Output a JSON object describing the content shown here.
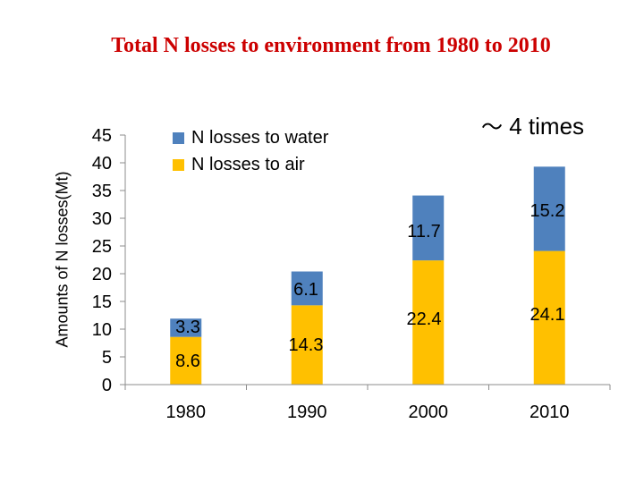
{
  "chart_data": {
    "type": "bar",
    "stacked": true,
    "title": "Total N losses to environment from 1980 to 2010",
    "xlabel": "",
    "ylabel": "Amounts of N losses(Mt)",
    "ylim": [
      0,
      45
    ],
    "yticks": [
      "0",
      "5",
      "10",
      "15",
      "20",
      "25",
      "30",
      "35",
      "40",
      "45"
    ],
    "categories": [
      "1980",
      "1990",
      "2000",
      "2010"
    ],
    "series": [
      {
        "name": "N losses to air",
        "color": "#ffc000",
        "values": [
          8.6,
          14.3,
          22.4,
          24.1
        ],
        "labels": [
          "8.6",
          "14.3",
          "22.4",
          "24.1"
        ]
      },
      {
        "name": "N losses to water",
        "color": "#4f81bd",
        "values": [
          3.3,
          6.1,
          11.7,
          15.2
        ],
        "labels": [
          "3.3",
          "6.1",
          "11.7",
          "15.2"
        ]
      }
    ],
    "legend": {
      "placement": "top-left",
      "entries": [
        "N losses to water",
        "N losses to air"
      ]
    },
    "annotation": {
      "symbol": "～",
      "text": "4 times"
    },
    "grid": false
  }
}
